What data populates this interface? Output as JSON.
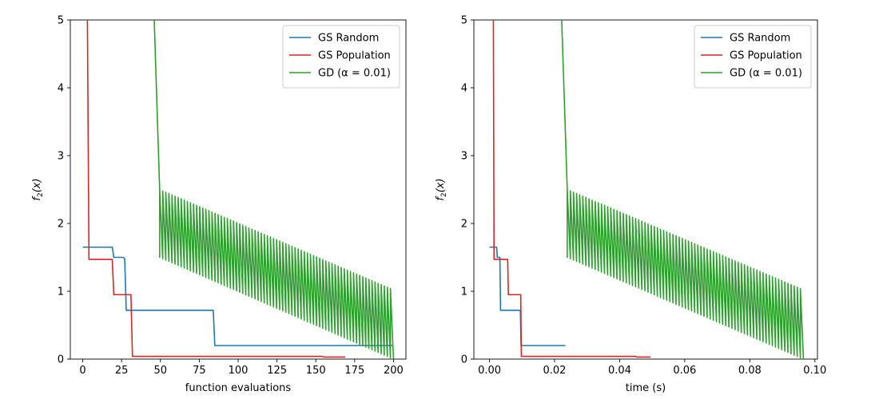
{
  "chart_data": [
    {
      "type": "line",
      "xlabel": "function evaluations",
      "ylabel": "f",
      "ylabel_sub": "2",
      "ylabel_arg": "(x)",
      "xlim": [
        -8,
        208
      ],
      "ylim": [
        0,
        5
      ],
      "xticks": [
        0,
        25,
        50,
        75,
        100,
        125,
        150,
        175,
        200
      ],
      "xtick_labels": [
        "0",
        "25",
        "50",
        "75",
        "100",
        "125",
        "150",
        "175",
        "200"
      ],
      "yticks": [
        0,
        1,
        2,
        3,
        4,
        5
      ],
      "ytick_labels": [
        "0",
        "1",
        "2",
        "3",
        "4",
        "5"
      ],
      "legend_position": "top-right",
      "grid": false,
      "series": [
        {
          "name": "GS Random",
          "color": "#1f77b4",
          "points": [
            [
              0,
              1.65
            ],
            [
              19,
              1.65
            ],
            [
              20,
              1.5
            ],
            [
              26,
              1.5
            ],
            [
              27,
              1.48
            ],
            [
              28,
              0.72
            ],
            [
              84,
              0.72
            ],
            [
              85,
              0.2
            ],
            [
              200,
              0.2
            ]
          ]
        },
        {
          "name": "GS Population",
          "color": "#d62728",
          "points": [
            [
              3,
              5.0
            ],
            [
              4,
              1.47
            ],
            [
              19,
              1.47
            ],
            [
              20,
              0.95
            ],
            [
              31,
              0.95
            ],
            [
              32,
              0.04
            ],
            [
              154,
              0.04
            ],
            [
              155,
              0.03
            ],
            [
              169,
              0.03
            ]
          ]
        },
        {
          "name": "GD",
          "name_math": "(α = 0.01)",
          "color": "#2ca02c",
          "sawtooth": {
            "start_x": 46,
            "start_y": 5.0,
            "drop_x": 49.5,
            "cycle_start": 49.5,
            "cycle_end": 200,
            "cycles": 76,
            "high_start": 2.5,
            "high_end": 1.02,
            "low_start": 1.5,
            "low_end": 0.0
          }
        }
      ]
    },
    {
      "type": "line",
      "xlabel": "time (s)",
      "ylabel": "f",
      "ylabel_sub": "2",
      "ylabel_arg": "(x)",
      "xlim": [
        -0.0048,
        0.1008
      ],
      "ylim": [
        0,
        5
      ],
      "xticks": [
        0.0,
        0.02,
        0.04,
        0.06,
        0.08,
        0.1
      ],
      "xtick_labels": [
        "0.00",
        "0.02",
        "0.04",
        "0.06",
        "0.08",
        "0.10"
      ],
      "yticks": [
        0,
        1,
        2,
        3,
        4,
        5
      ],
      "ytick_labels": [
        "0",
        "1",
        "2",
        "3",
        "4",
        "5"
      ],
      "legend_position": "top-right",
      "grid": false,
      "series": [
        {
          "name": "GS Random",
          "color": "#1f77b4",
          "points": [
            [
              0.0,
              1.65
            ],
            [
              0.0022,
              1.65
            ],
            [
              0.0024,
              1.5
            ],
            [
              0.0032,
              1.5
            ],
            [
              0.0034,
              0.72
            ],
            [
              0.0095,
              0.72
            ],
            [
              0.0097,
              0.2
            ],
            [
              0.0233,
              0.2
            ]
          ]
        },
        {
          "name": "GS Population",
          "color": "#d62728",
          "points": [
            [
              0.0012,
              5.0
            ],
            [
              0.0014,
              1.47
            ],
            [
              0.0056,
              1.47
            ],
            [
              0.0058,
              0.95
            ],
            [
              0.0096,
              0.95
            ],
            [
              0.0098,
              0.04
            ],
            [
              0.045,
              0.04
            ],
            [
              0.0452,
              0.03
            ],
            [
              0.0495,
              0.03
            ]
          ]
        },
        {
          "name": "GD",
          "name_math": "(α = 0.01)",
          "color": "#2ca02c",
          "sawtooth": {
            "start_x": 0.0222,
            "start_y": 5.0,
            "drop_x": 0.0239,
            "cycle_start": 0.0239,
            "cycle_end": 0.0965,
            "cycles": 76,
            "high_start": 2.5,
            "high_end": 1.02,
            "low_start": 1.5,
            "low_end": 0.0
          }
        }
      ]
    }
  ]
}
